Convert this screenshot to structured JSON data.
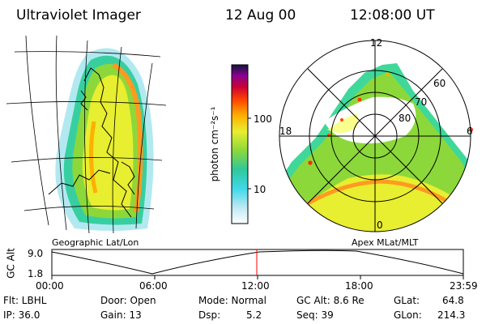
{
  "header": {
    "instrument": "Ultraviolet Imager",
    "date": "12 Aug 00",
    "time": "12:08:00 UT"
  },
  "geo_panel": {
    "caption": "Geographic Lat/Lon"
  },
  "polar_panel": {
    "caption": "Apex MLat/MLT",
    "mlt_labels": {
      "top": "12",
      "left": "18",
      "right": "6",
      "bottom": "0"
    },
    "lat_labels": [
      "60",
      "70",
      "80"
    ]
  },
  "colorbar": {
    "unit_label": "photon cm⁻²s⁻¹",
    "ticks": [
      "100",
      "10"
    ],
    "colors": [
      "#ffffff",
      "#3fd8e8",
      "#30c89a",
      "#8cd83a",
      "#e8ee30",
      "#ffb000",
      "#ff4400",
      "#cc0033",
      "#8a0090",
      "#141440"
    ]
  },
  "altitude_plot": {
    "ylabel": "GC Alt",
    "ymax": "9.0",
    "ymin": "1.8",
    "xticks": [
      "00:00",
      "06:00",
      "12:00",
      "18:00",
      "23:59"
    ],
    "marker_color": "#ff0000"
  },
  "status": {
    "flt": "Flt: LBHL",
    "ip": "IP: 36.0",
    "door": "Door: Open",
    "gain": "Gain: 13",
    "mode": "Mode: Normal",
    "dsp": "Dsp:",
    "dsp_value": "5.2",
    "gcalt": "GC Alt: 8.6 Re",
    "seq": "Seq: 39",
    "glat": "GLat:",
    "glat_value": "64.8",
    "glon": "GLon:",
    "glon_value": "214.3"
  }
}
